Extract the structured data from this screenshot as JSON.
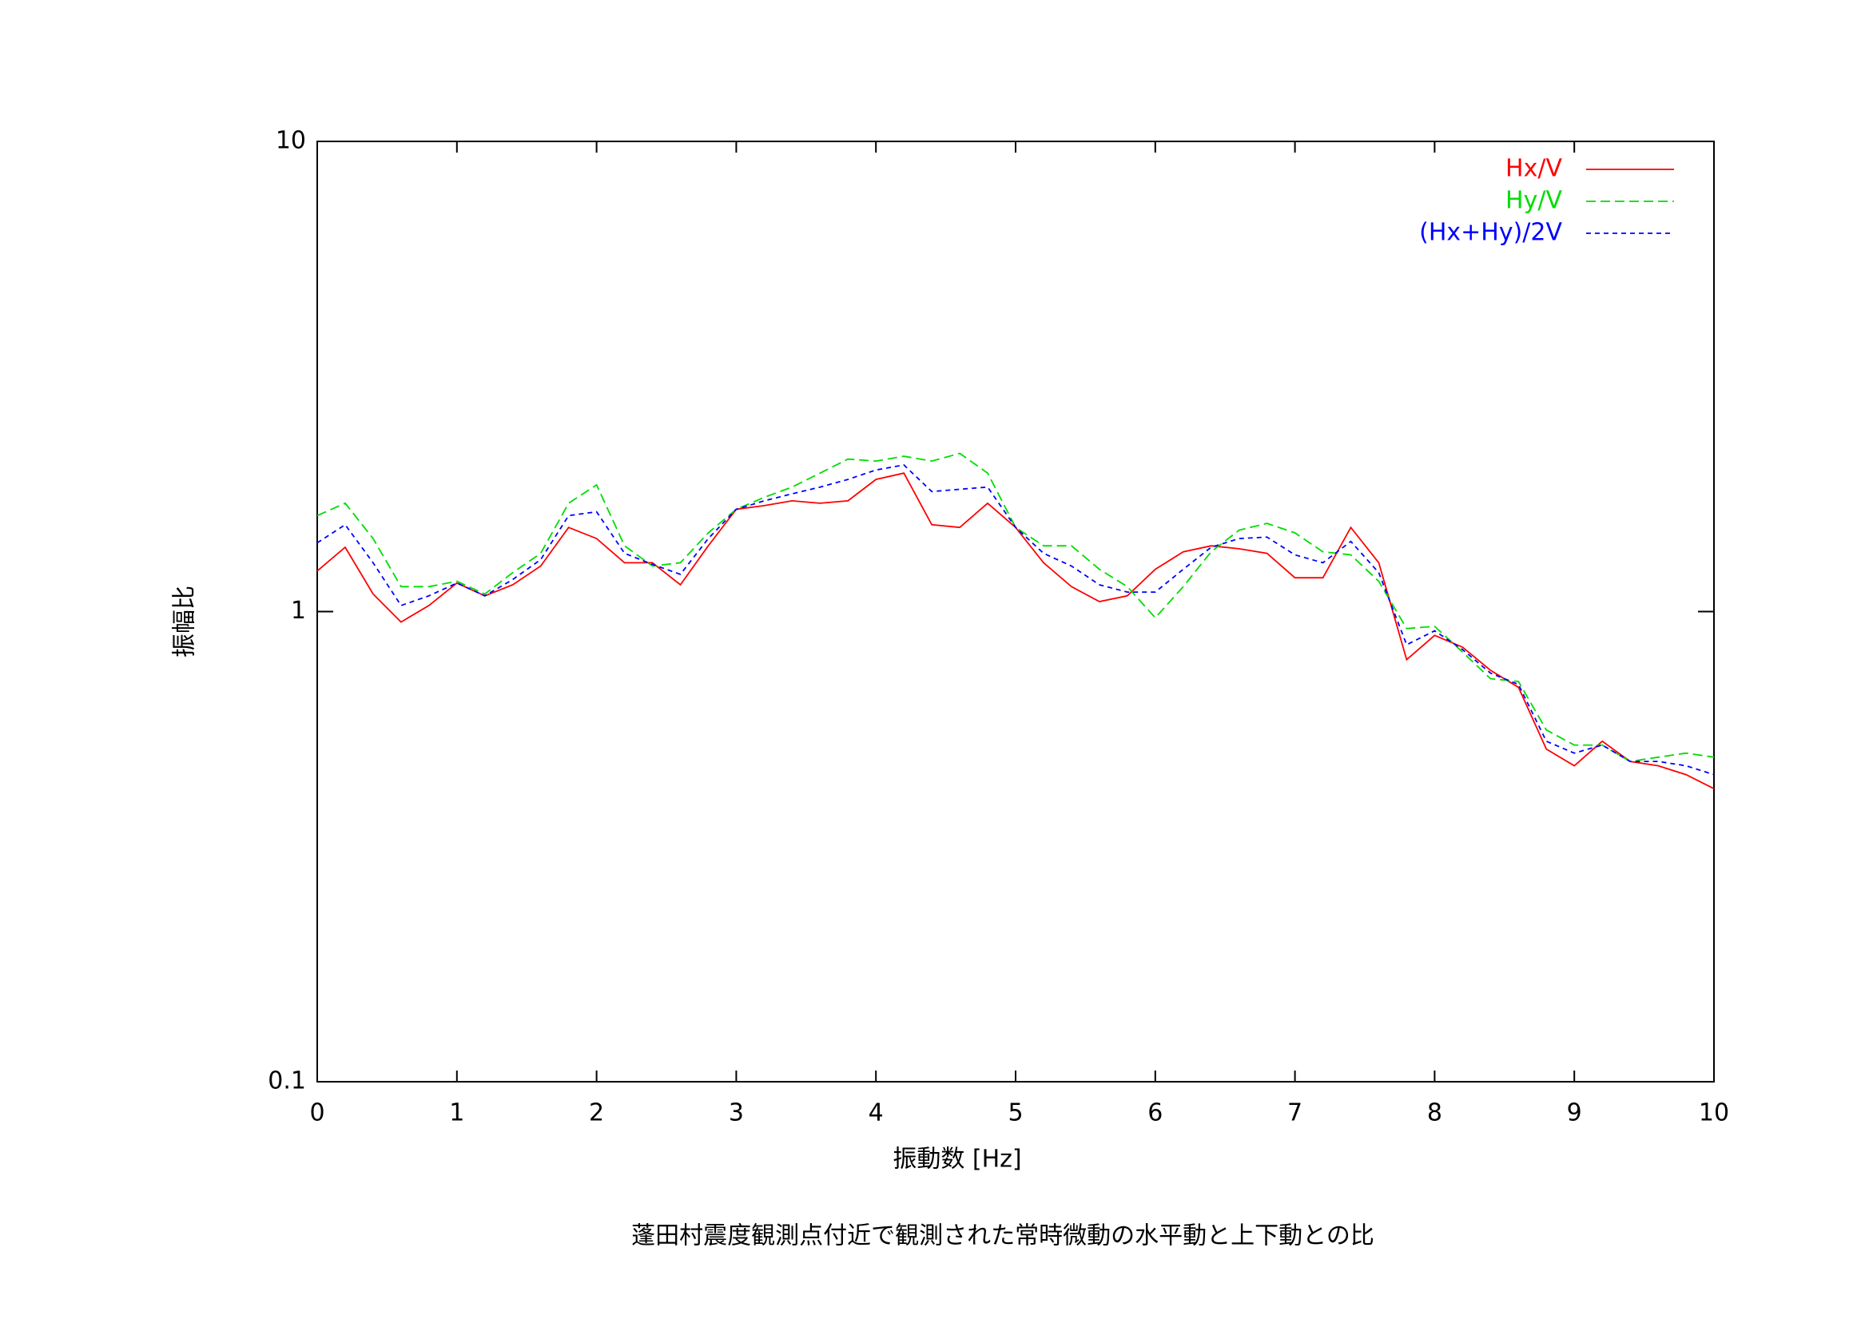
{
  "chart_data": {
    "type": "line",
    "title": "蓬田村震度観測点付近で観測された常時微動の水平動と上下動との比",
    "x_label": "振動数 [Hz]",
    "y_label": "振幅比",
    "x": [
      0,
      0.2,
      0.4,
      0.6,
      0.8,
      1,
      1.2,
      1.4,
      1.6,
      1.8,
      2,
      2.2,
      2.4,
      2.6,
      2.8,
      3,
      3.2,
      3.4,
      3.6,
      3.8,
      4,
      4.2,
      4.4,
      4.6,
      4.8,
      5,
      5.2,
      5.4,
      5.6,
      5.8,
      6,
      6.2,
      6.4,
      6.6,
      6.8,
      7,
      7.2,
      7.4,
      7.6,
      7.8,
      8,
      8.2,
      8.4,
      8.6,
      8.8,
      9,
      9.2,
      9.4,
      9.6,
      9.8,
      10
    ],
    "series": [
      {
        "name": "Hx/V",
        "color": "#ff0000",
        "values": [
          1.22,
          1.37,
          1.09,
          0.95,
          1.03,
          1.15,
          1.08,
          1.14,
          1.25,
          1.51,
          1.43,
          1.27,
          1.27,
          1.14,
          1.38,
          1.65,
          1.68,
          1.72,
          1.7,
          1.72,
          1.91,
          1.97,
          1.53,
          1.51,
          1.7,
          1.51,
          1.27,
          1.13,
          1.05,
          1.08,
          1.23,
          1.34,
          1.38,
          1.36,
          1.33,
          1.18,
          1.18,
          1.51,
          1.27,
          0.79,
          0.89,
          0.84,
          0.75,
          0.69,
          0.51,
          0.47,
          0.53,
          0.48,
          0.47,
          0.45,
          0.42
        ]
      },
      {
        "name": "Hy/V",
        "color": "#00dd00",
        "values": [
          1.6,
          1.7,
          1.43,
          1.13,
          1.13,
          1.16,
          1.09,
          1.21,
          1.33,
          1.7,
          1.86,
          1.38,
          1.25,
          1.27,
          1.47,
          1.65,
          1.75,
          1.84,
          1.97,
          2.11,
          2.09,
          2.14,
          2.09,
          2.17,
          1.97,
          1.51,
          1.38,
          1.38,
          1.23,
          1.13,
          0.97,
          1.13,
          1.34,
          1.49,
          1.54,
          1.47,
          1.34,
          1.32,
          1.16,
          0.92,
          0.93,
          0.82,
          0.72,
          0.71,
          0.56,
          0.52,
          0.52,
          0.48,
          0.49,
          0.5,
          0.49
        ]
      },
      {
        "name": "(Hx+Hy)/2V",
        "color": "#0000ff",
        "values": [
          1.4,
          1.53,
          1.27,
          1.03,
          1.08,
          1.15,
          1.08,
          1.17,
          1.29,
          1.6,
          1.63,
          1.33,
          1.26,
          1.2,
          1.43,
          1.65,
          1.72,
          1.78,
          1.84,
          1.91,
          2.0,
          2.05,
          1.8,
          1.82,
          1.84,
          1.51,
          1.33,
          1.25,
          1.14,
          1.1,
          1.1,
          1.23,
          1.37,
          1.43,
          1.44,
          1.32,
          1.27,
          1.41,
          1.21,
          0.85,
          0.91,
          0.83,
          0.74,
          0.7,
          0.53,
          0.5,
          0.52,
          0.48,
          0.48,
          0.47,
          0.45
        ]
      }
    ],
    "xlim": [
      0,
      10
    ],
    "xticks": [
      0,
      1,
      2,
      3,
      4,
      5,
      6,
      7,
      8,
      9,
      10
    ],
    "ylim": [
      0.1,
      10
    ],
    "yticks": [
      0.1,
      1,
      10
    ],
    "y_log": true,
    "legend": "upper right"
  }
}
